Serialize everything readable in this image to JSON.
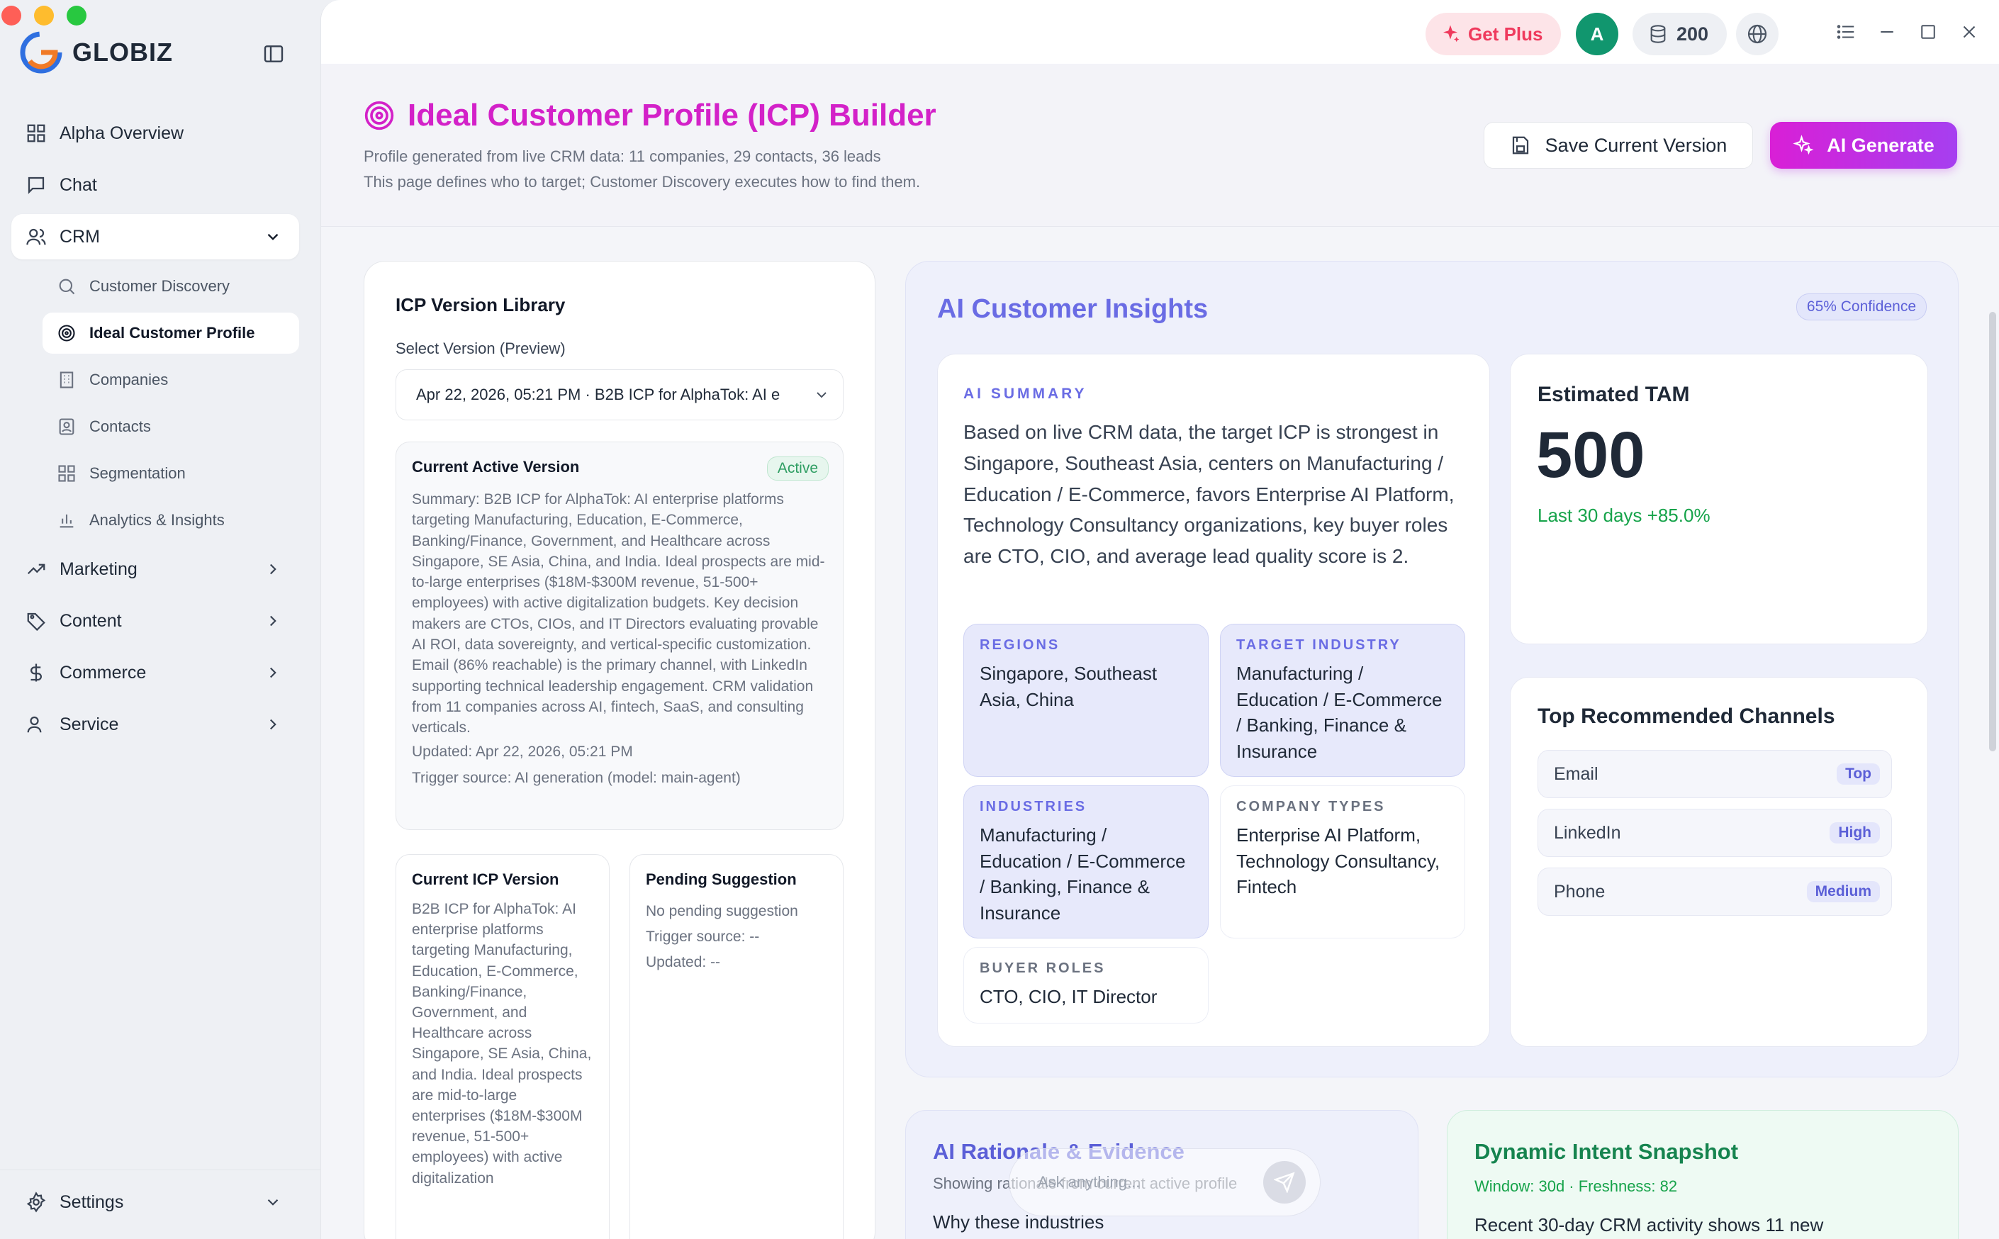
{
  "brand": {
    "name": "GLOBIZ"
  },
  "sidebar": {
    "items": [
      {
        "label": "Alpha Overview",
        "icon": "grid-icon"
      },
      {
        "label": "Chat",
        "icon": "chat-icon"
      },
      {
        "label": "CRM",
        "icon": "users-icon"
      }
    ],
    "crm_sub": [
      {
        "label": "Customer Discovery",
        "icon": "search-icon"
      },
      {
        "label": "Ideal Customer Profile",
        "icon": "target-icon"
      },
      {
        "label": "Companies",
        "icon": "building-icon"
      },
      {
        "label": "Contacts",
        "icon": "contact-icon"
      },
      {
        "label": "Segmentation",
        "icon": "grid-icon"
      },
      {
        "label": "Analytics & Insights",
        "icon": "bar-chart-icon"
      }
    ],
    "groups": [
      {
        "label": "Marketing",
        "icon": "trend-icon"
      },
      {
        "label": "Content",
        "icon": "tag-icon"
      },
      {
        "label": "Commerce",
        "icon": "dollar-icon"
      },
      {
        "label": "Service",
        "icon": "user-icon"
      }
    ],
    "settings": {
      "label": "Settings",
      "icon": "gear-icon"
    }
  },
  "topbar": {
    "get_plus": "Get Plus",
    "avatar_initial": "A",
    "credits": "200"
  },
  "header": {
    "title": "Ideal Customer Profile (ICP) Builder",
    "line1": "Profile generated from live CRM data: 11 companies, 29 contacts, 36 leads",
    "line2": "This page defines who to target; Customer Discovery executes how to find them.",
    "save_label": "Save Current Version",
    "ai_label": "AI Generate"
  },
  "library": {
    "title": "ICP Version Library",
    "select_label": "Select Version (Preview)",
    "select_value": "Apr 22, 2026, 05:21 PM · B2B ICP for AlphaTok: AI e",
    "active": {
      "heading": "Current Active Version",
      "badge": "Active",
      "summary": "Summary: B2B ICP for AlphaTok: AI enterprise platforms targeting Manufacturing, Education, E-Commerce, Banking/Finance, Government, and Healthcare across Singapore, SE Asia, China, and India. Ideal prospects are mid-to-large enterprises ($18M-$300M revenue, 51-500+ employees) with active digitalization budgets. Key decision makers are CTOs, CIOs, and IT Directors evaluating provable AI ROI, data sovereignty, and vertical-specific customization. Email (86% reachable) is the primary channel, with LinkedIn supporting technical leadership engagement. CRM validation from 11 companies across AI, fintech, SaaS, and consulting verticals.",
      "updated": "Updated: Apr 22, 2026, 05:21 PM",
      "trigger": "Trigger source: AI generation (model: main-agent)"
    },
    "current": {
      "heading": "Current ICP Version",
      "text": "B2B ICP for AlphaTok: AI enterprise platforms targeting Manufacturing, Education, E-Commerce, Banking/Finance, Government, and Healthcare across Singapore, SE Asia, China, and India. Ideal prospects are mid-to-large enterprises ($18M-$300M revenue, 51-500+ employees) with active digitalization"
    },
    "pending": {
      "heading": "Pending Suggestion",
      "status": "No pending suggestion",
      "trigger": "Trigger source: --",
      "updated": "Updated: --"
    }
  },
  "insights": {
    "title": "AI Customer Insights",
    "confidence": "65% Confidence",
    "summary_label": "AI SUMMARY",
    "summary_text": "Based on live CRM data, the target ICP is strongest in Singapore, Southeast Asia, centers on Manufacturing / Education / E-Commerce, favors Enterprise AI Platform, Technology Consultancy organizations, key buyer roles are CTO, CIO, and average lead quality score is 2.",
    "tiles": {
      "regions": {
        "label": "REGIONS",
        "value": "Singapore, Southeast Asia, China"
      },
      "target_industry": {
        "label": "TARGET INDUSTRY",
        "value": "Manufacturing / Education / E-Commerce / Banking, Finance & Insurance"
      },
      "industries": {
        "label": "INDUSTRIES",
        "value": "Manufacturing / Education / E-Commerce / Banking, Finance & Insurance"
      },
      "company_types": {
        "label": "COMPANY TYPES",
        "value": "Enterprise AI Platform, Technology Consultancy, Fintech"
      },
      "buyer_roles": {
        "label": "BUYER ROLES",
        "value": "CTO, CIO, IT Director"
      }
    },
    "tam": {
      "label": "Estimated TAM",
      "value": "500",
      "delta": "Last 30 days +85.0%"
    },
    "channels": {
      "title": "Top Recommended Channels",
      "items": [
        {
          "name": "Email",
          "badge": "Top"
        },
        {
          "name": "LinkedIn",
          "badge": "High"
        },
        {
          "name": "Phone",
          "badge": "Medium"
        }
      ]
    }
  },
  "rationale": {
    "title": "AI Rationale & Evidence",
    "subtitle": "Showing rationale from current active profile",
    "why": "Why these industries"
  },
  "dynamic": {
    "title": "Dynamic Intent Snapshot",
    "meta": "Window: 30d · Freshness: 82",
    "text": "Recent 30-day CRM activity shows 11 new"
  },
  "chat": {
    "placeholder": "Ask anything..."
  },
  "colors": {
    "accent": "#d321c8",
    "insight": "#6a6ce4",
    "positive": "#16a34a"
  }
}
